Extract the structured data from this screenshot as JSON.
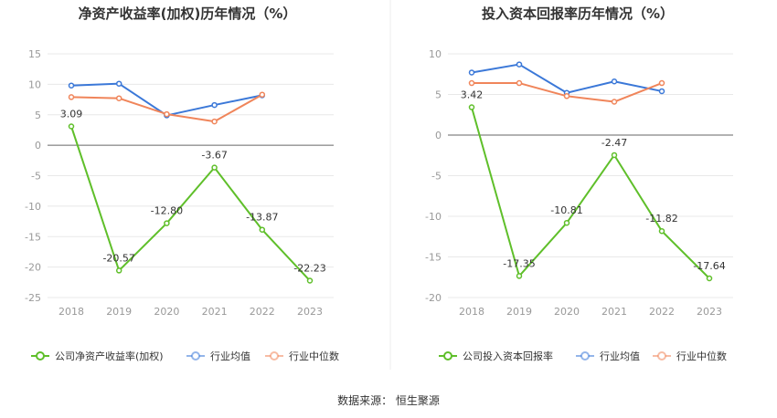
{
  "chart_data": [
    {
      "type": "line",
      "title": "净资产收益率(加权)历年情况（%）",
      "categories": [
        "2018",
        "2019",
        "2020",
        "2021",
        "2022",
        "2023"
      ],
      "ylim": [
        -25,
        15
      ],
      "yticks": [
        15,
        10,
        5,
        0,
        -5,
        -10,
        -15,
        -20,
        -25
      ],
      "grid": true,
      "legend_position": "bottom",
      "series": [
        {
          "name": "公司净资产收益率(加权)",
          "color": "#5fbf2a",
          "values": [
            3.09,
            -20.57,
            -12.8,
            -3.67,
            -13.87,
            -22.23
          ],
          "labels": [
            "3.09",
            "-20.57",
            "-12.80",
            "-3.67",
            "-13.87",
            "-22.23"
          ]
        },
        {
          "name": "行业均值",
          "color": "#3b78d8",
          "values": [
            9.8,
            10.1,
            4.9,
            6.6,
            8.2,
            null
          ]
        },
        {
          "name": "行业中位数",
          "color": "#f0855a",
          "values": [
            7.9,
            7.7,
            5.1,
            3.9,
            8.3,
            null
          ]
        }
      ]
    },
    {
      "type": "line",
      "title": "投入资本回报率历年情况（%）",
      "categories": [
        "2018",
        "2019",
        "2020",
        "2021",
        "2022",
        "2023"
      ],
      "ylim": [
        -20,
        10
      ],
      "yticks": [
        10,
        5,
        0,
        -5,
        -10,
        -15,
        -20
      ],
      "grid": true,
      "legend_position": "bottom",
      "series": [
        {
          "name": "公司投入资本回报率",
          "color": "#5fbf2a",
          "values": [
            3.42,
            -17.35,
            -10.81,
            -2.47,
            -11.82,
            -17.64
          ],
          "labels": [
            "3.42",
            "-17.35",
            "-10.81",
            "-2.47",
            "-11.82",
            "-17.64"
          ]
        },
        {
          "name": "行业均值",
          "color": "#3b78d8",
          "values": [
            7.7,
            8.7,
            5.2,
            6.6,
            5.4,
            null
          ]
        },
        {
          "name": "行业中位数",
          "color": "#f0855a",
          "values": [
            6.4,
            6.4,
            4.8,
            4.1,
            6.4,
            null
          ]
        }
      ]
    }
  ],
  "footer": {
    "source": "数据来源：  恒生聚源"
  }
}
